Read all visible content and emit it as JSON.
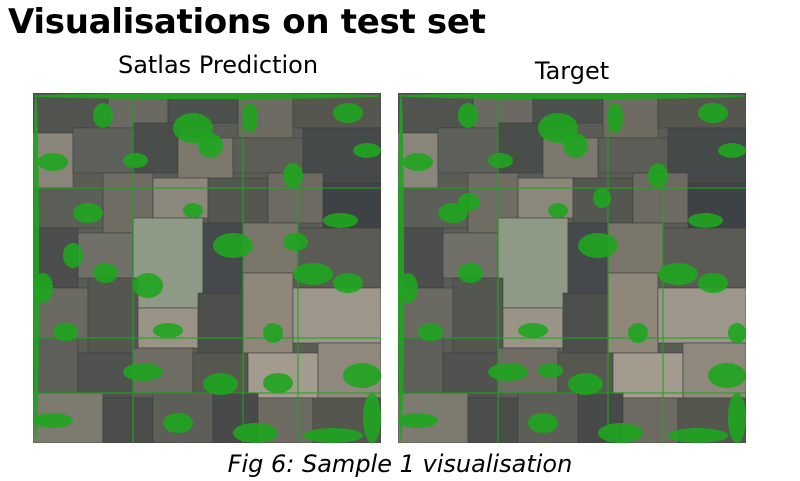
{
  "title": "Visualisations on test set",
  "panels": [
    {
      "label": "Satlas Prediction"
    },
    {
      "label": "Target"
    }
  ],
  "caption": "Fig 6: Sample 1 visualisation",
  "colors": {
    "overlay_green": "#1fa51f",
    "field_dark": "#4a4d4a",
    "field_light": "#9a9486"
  }
}
